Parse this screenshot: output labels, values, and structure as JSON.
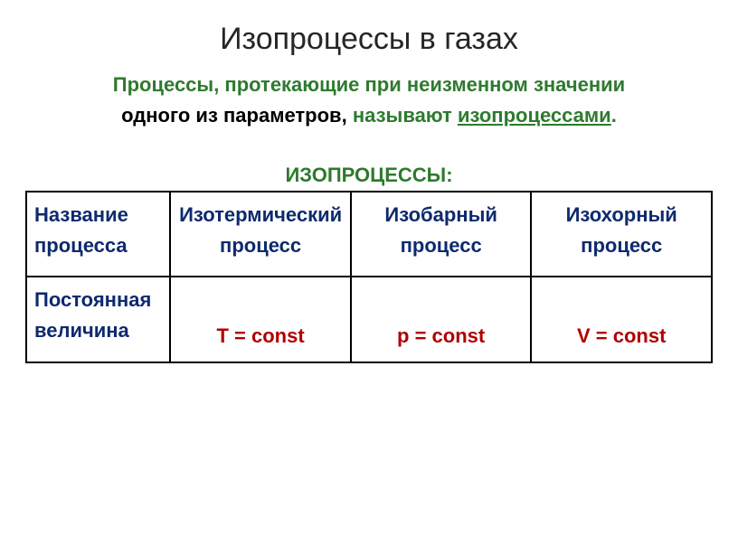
{
  "title": "Изопроцессы в газах",
  "subtitle": {
    "part1": "Процессы, протекающие при неизменном значении",
    "part2_black": "одного из параметров,",
    "part2_green": " называют ",
    "part2_underline": "изопроцессами",
    "part2_period": "."
  },
  "section_label": "ИЗОПРОЦЕССЫ:",
  "table": {
    "row1_label": "Название процесса",
    "col1": "Изотермический процесс",
    "col2": "Изобарный процесс",
    "col3": "Изохорный процесс",
    "row2_label": "Постоянная величина",
    "val1": "T = const",
    "val2": "p = const",
    "val3": "V = const"
  },
  "colors": {
    "green": "#2e7a2e",
    "navy": "#0e2a6e",
    "red": "#b00000",
    "black": "#000000",
    "title_gray": "#262626"
  }
}
